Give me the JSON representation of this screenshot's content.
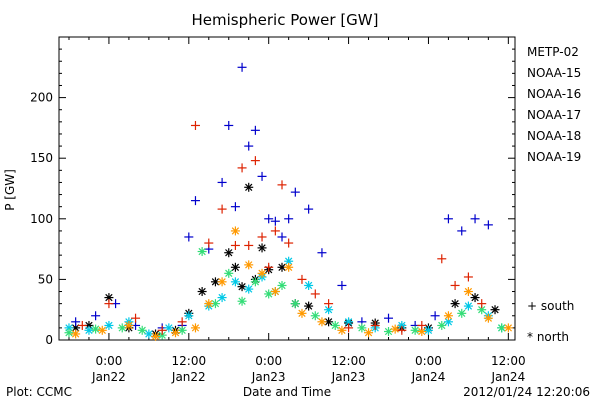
{
  "chart_data": {
    "type": "scatter",
    "title": "Hemispheric Power [GW]",
    "xlabel": "Date and Time",
    "ylabel": "P [GW]",
    "ylim": [
      0,
      250
    ],
    "yticks": [
      0,
      50,
      100,
      150,
      200
    ],
    "xlim_hours": [
      -7.5,
      61
    ],
    "xticks": [
      {
        "hours": 0,
        "time": "0:00",
        "date": "Jan22"
      },
      {
        "hours": 12,
        "time": "12:00",
        "date": "Jan22"
      },
      {
        "hours": 24,
        "time": "0:00",
        "date": "Jan23"
      },
      {
        "hours": 36,
        "time": "12:00",
        "date": "Jan23"
      },
      {
        "hours": 48,
        "time": "0:00",
        "date": "Jan24"
      },
      {
        "hours": 60,
        "time": "12:00",
        "date": "Jan24"
      }
    ],
    "marker_legend": [
      {
        "symbol": "+",
        "label": "south"
      },
      {
        "symbol": "*",
        "label": "north"
      }
    ],
    "series": [
      {
        "name": "METP-02",
        "color": "#000000",
        "marker": "*",
        "x": [
          -5,
          -3,
          0,
          3,
          7,
          10,
          12,
          14,
          16,
          18,
          19,
          20,
          21,
          22,
          23,
          24,
          26,
          28,
          30,
          33,
          36,
          40,
          44,
          48,
          52,
          55,
          58
        ],
        "y": [
          10,
          12,
          35,
          10,
          5,
          8,
          22,
          40,
          48,
          72,
          60,
          44,
          126,
          50,
          76,
          58,
          60,
          30,
          28,
          15,
          14,
          14,
          10,
          10,
          30,
          35,
          25
        ]
      },
      {
        "name": "NOAA-15",
        "color": "#0000cc",
        "marker": "+",
        "x": [
          -5,
          -2,
          1,
          4,
          8,
          11,
          12,
          13,
          15,
          17,
          18,
          19,
          20,
          21,
          22,
          23,
          24,
          25,
          26,
          27,
          28,
          30,
          32,
          35,
          38,
          42,
          46,
          49,
          51,
          53,
          55,
          57
        ],
        "y": [
          15,
          20,
          30,
          12,
          10,
          12,
          85,
          115,
          75,
          130,
          177,
          110,
          225,
          160,
          173,
          135,
          100,
          98,
          85,
          100,
          122,
          108,
          72,
          45,
          15,
          18,
          12,
          20,
          100,
          90,
          100,
          95
        ]
      },
      {
        "name": "NOAA-16",
        "color": "#00c8e6",
        "marker": "*",
        "x": [
          -6,
          -3,
          0,
          3,
          6,
          9,
          12,
          15,
          17,
          19,
          21,
          23,
          25,
          27,
          30,
          33,
          36,
          40,
          44,
          48,
          51,
          54,
          57,
          59
        ],
        "y": [
          10,
          8,
          12,
          15,
          5,
          10,
          20,
          28,
          35,
          48,
          42,
          52,
          40,
          65,
          45,
          25,
          15,
          10,
          12,
          8,
          15,
          28,
          20,
          10
        ]
      },
      {
        "name": "NOAA-17",
        "color": "#33dd77",
        "marker": "*",
        "x": [
          -6,
          -2,
          2,
          5,
          8,
          11,
          14,
          16,
          18,
          20,
          22,
          24,
          26,
          28,
          31,
          34,
          38,
          42,
          46,
          50,
          53,
          56,
          59
        ],
        "y": [
          6,
          9,
          10,
          8,
          4,
          8,
          73,
          30,
          55,
          32,
          48,
          38,
          45,
          30,
          20,
          12,
          10,
          7,
          8,
          12,
          22,
          25,
          10
        ]
      },
      {
        "name": "NOAA-18",
        "color": "#ff9900",
        "marker": "*",
        "x": [
          -5,
          -1,
          3,
          7,
          10,
          13,
          15,
          17,
          19,
          21,
          23,
          25,
          27,
          29,
          32,
          35,
          39,
          43,
          47,
          51,
          54,
          57,
          60
        ],
        "y": [
          5,
          8,
          12,
          3,
          6,
          10,
          30,
          48,
          90,
          62,
          55,
          40,
          60,
          22,
          15,
          8,
          6,
          9,
          7,
          20,
          40,
          18,
          10
        ]
      },
      {
        "name": "NOAA-19",
        "color": "#dd2200",
        "marker": "+",
        "x": [
          -4,
          0,
          4,
          8,
          11,
          13,
          15,
          17,
          19,
          20,
          21,
          22,
          23,
          24,
          25,
          26,
          27,
          29,
          31,
          33,
          36,
          40,
          44,
          47,
          50,
          52,
          54,
          56
        ],
        "y": [
          12,
          30,
          18,
          8,
          15,
          177,
          80,
          108,
          78,
          142,
          78,
          148,
          85,
          60,
          90,
          128,
          80,
          50,
          38,
          30,
          10,
          12,
          8,
          12,
          67,
          45,
          52,
          30
        ]
      }
    ]
  },
  "footer": {
    "plot_label": "Plot: CCMC",
    "timestamp": "2012/01/24 12:20:06"
  }
}
